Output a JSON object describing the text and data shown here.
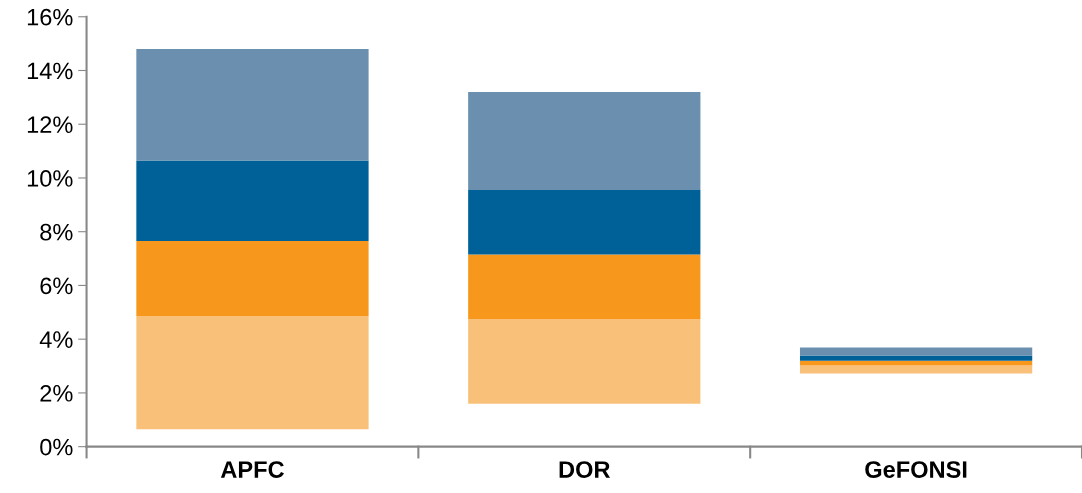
{
  "chart_data": {
    "type": "bar",
    "categories": [
      "APFC",
      "DOR",
      "GeFONSI"
    ],
    "series": [
      {
        "color": "#f9c07a",
        "base": [
          0.65,
          1.6,
          2.72
        ],
        "values": [
          4.2,
          3.15,
          0.3
        ]
      },
      {
        "color": "#f7981d",
        "base": [
          4.85,
          4.75,
          3.02
        ],
        "values": [
          2.8,
          2.4,
          0.18
        ]
      },
      {
        "color": "#006199",
        "base": [
          7.65,
          7.15,
          3.2
        ],
        "values": [
          3.0,
          2.4,
          0.19
        ]
      },
      {
        "color": "#6b8fae",
        "base": [
          10.65,
          9.55,
          3.39
        ],
        "values": [
          4.15,
          3.65,
          0.3
        ]
      }
    ],
    "ylim": [
      0,
      16
    ],
    "yticks": [
      {
        "value": 0,
        "label": "0%"
      },
      {
        "value": 2,
        "label": "2%"
      },
      {
        "value": 4,
        "label": "4%"
      },
      {
        "value": 6,
        "label": "6%"
      },
      {
        "value": 8,
        "label": "8%"
      },
      {
        "value": 10,
        "label": "10%"
      },
      {
        "value": 12,
        "label": "12%"
      },
      {
        "value": 14,
        "label": "14%"
      },
      {
        "value": 16,
        "label": "16%"
      }
    ],
    "grid": false,
    "legend": false
  }
}
